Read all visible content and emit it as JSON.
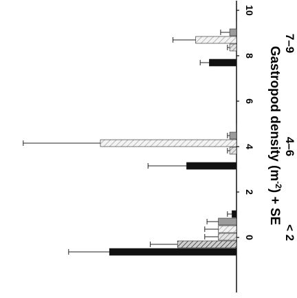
{
  "chart_data": {
    "type": "bar",
    "orientation": "horizontal",
    "image_rotation_deg": 180,
    "ylabel_main": "Gastropod density",
    "ylabel_unit_base": "(m",
    "ylabel_unit_sup": "-2",
    "ylabel_unit_end": ") + SE",
    "xlim": [
      0,
      10
    ],
    "ticks": [
      "0",
      "2",
      "4",
      "6",
      "8",
      "10"
    ],
    "tick_values": [
      0,
      2,
      4,
      6,
      8,
      10
    ],
    "categories": [
      "< 2",
      "4–6",
      "7–9"
    ],
    "series": [
      {
        "pattern": "solid",
        "color": "#111111",
        "values": [
          5.6,
          2.2,
          1.2
        ],
        "se": [
          1.8,
          1.7,
          0.4
        ]
      },
      {
        "pattern": "hatch",
        "color": "#888888",
        "values": [
          2.6,
          0.0,
          0.0
        ],
        "se": [
          1.2,
          0.0,
          0.0
        ]
      },
      {
        "pattern": "hatch",
        "color": "#aaaaaa",
        "values": [
          0.8,
          0.3,
          0.3
        ],
        "se": [
          0.6,
          0.1,
          0.1
        ]
      },
      {
        "pattern": "hatch",
        "color": "#cccccc",
        "values": [
          0.8,
          6.0,
          1.8
        ],
        "se": [
          0.6,
          3.4,
          1.0
        ]
      },
      {
        "pattern": "solid",
        "color": "#999999",
        "values": [
          0.8,
          0.3,
          0.3
        ],
        "se": [
          0.5,
          0.1,
          0.4
        ]
      },
      {
        "pattern": "solid",
        "color": "#111111",
        "values": [
          0.2,
          0.0,
          0.0
        ],
        "se": [
          0.2,
          0.0,
          0.0
        ]
      }
    ]
  }
}
